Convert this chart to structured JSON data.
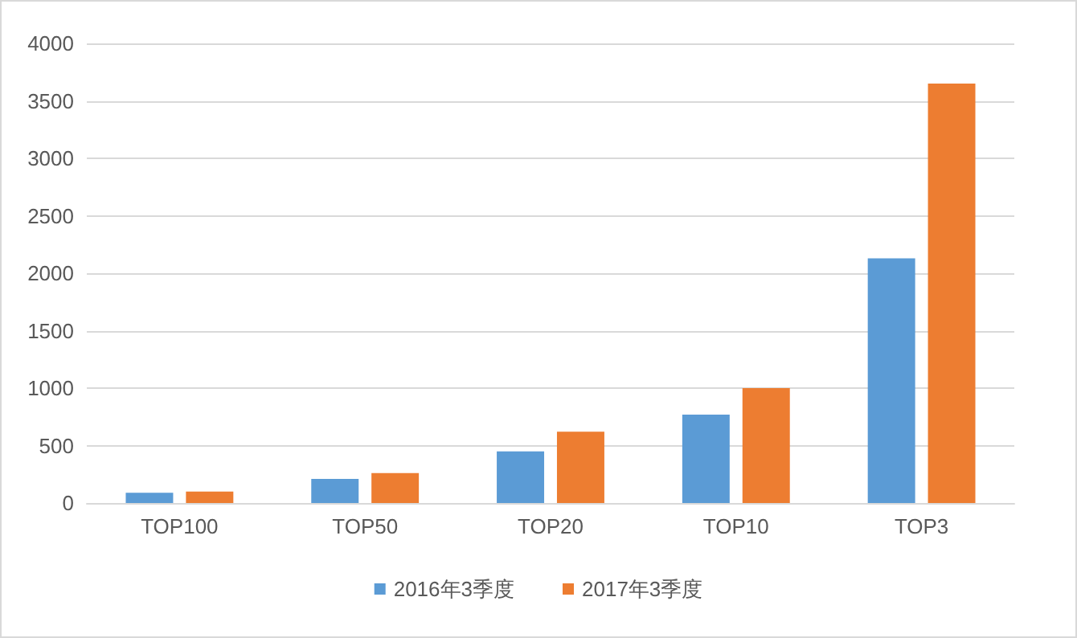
{
  "chart_data": {
    "type": "bar",
    "categories": [
      "TOP100",
      "TOP50",
      "TOP20",
      "TOP10",
      "TOP3"
    ],
    "series": [
      {
        "name": "2016年3季度",
        "color": "#5b9bd5",
        "values": [
          90,
          210,
          450,
          770,
          2130
        ]
      },
      {
        "name": "2017年3季度",
        "color": "#ed7d31",
        "values": [
          100,
          260,
          620,
          1000,
          3650
        ]
      }
    ],
    "ylim": [
      0,
      4000
    ],
    "yticks": [
      0,
      500,
      1000,
      1500,
      2000,
      2500,
      3000,
      3500,
      4000
    ],
    "grid": "y",
    "legend": "bottom"
  }
}
